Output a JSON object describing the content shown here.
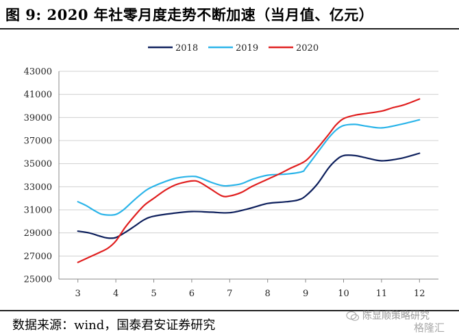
{
  "header": {
    "title": "图 9: 2020 年社零月度走势不断加速（当月值、亿元）"
  },
  "footer": {
    "source": "数据来源：wind，国泰君安证券研究",
    "watermark_account": "陈显顺策略研究",
    "watermark_brand": "格隆汇"
  },
  "chart_data": {
    "type": "line",
    "title": "",
    "xlabel": "",
    "ylabel": "",
    "categories": [
      "3",
      "4",
      "5",
      "6",
      "7",
      "8",
      "9",
      "10",
      "11",
      "12"
    ],
    "x": [
      3,
      4,
      5,
      6,
      7,
      8,
      9,
      10,
      11,
      12
    ],
    "ylim": [
      25000,
      43000
    ],
    "yticks": [
      "25000",
      "27000",
      "29000",
      "31000",
      "33000",
      "35000",
      "37000",
      "39000",
      "41000",
      "43000"
    ],
    "grid": "horizontal",
    "legend_position": "top-center",
    "series": [
      {
        "name": "2018",
        "color": "#0d1f5c",
        "points": [
          [
            3.0,
            29150
          ],
          [
            3.3,
            29000
          ],
          [
            3.6,
            28700
          ],
          [
            3.8,
            28550
          ],
          [
            4.0,
            28600
          ],
          [
            4.25,
            29050
          ],
          [
            4.5,
            29600
          ],
          [
            4.75,
            30150
          ],
          [
            5.0,
            30450
          ],
          [
            5.5,
            30700
          ],
          [
            6.0,
            30850
          ],
          [
            6.5,
            30800
          ],
          [
            7.0,
            30750
          ],
          [
            7.5,
            31100
          ],
          [
            8.0,
            31550
          ],
          [
            8.5,
            31700
          ],
          [
            8.8,
            31850
          ],
          [
            9.0,
            32200
          ],
          [
            9.3,
            33200
          ],
          [
            9.6,
            34600
          ],
          [
            9.8,
            35300
          ],
          [
            10.0,
            35700
          ],
          [
            10.3,
            35700
          ],
          [
            10.6,
            35500
          ],
          [
            11.0,
            35250
          ],
          [
            11.5,
            35450
          ],
          [
            12.0,
            35900
          ]
        ]
      },
      {
        "name": "2019",
        "color": "#2ab4e9",
        "points": [
          [
            3.0,
            31700
          ],
          [
            3.2,
            31400
          ],
          [
            3.4,
            31000
          ],
          [
            3.6,
            30650
          ],
          [
            3.8,
            30550
          ],
          [
            4.0,
            30600
          ],
          [
            4.2,
            31000
          ],
          [
            4.5,
            31900
          ],
          [
            4.8,
            32700
          ],
          [
            5.0,
            33050
          ],
          [
            5.3,
            33450
          ],
          [
            5.6,
            33750
          ],
          [
            6.0,
            33900
          ],
          [
            6.2,
            33800
          ],
          [
            6.5,
            33400
          ],
          [
            6.8,
            33100
          ],
          [
            7.0,
            33100
          ],
          [
            7.3,
            33250
          ],
          [
            7.6,
            33650
          ],
          [
            8.0,
            34000
          ],
          [
            8.5,
            34100
          ],
          [
            8.9,
            34300
          ],
          [
            9.0,
            34600
          ],
          [
            9.3,
            35900
          ],
          [
            9.6,
            37200
          ],
          [
            9.8,
            37900
          ],
          [
            10.0,
            38300
          ],
          [
            10.3,
            38400
          ],
          [
            10.6,
            38250
          ],
          [
            11.0,
            38100
          ],
          [
            11.5,
            38400
          ],
          [
            12.0,
            38800
          ]
        ]
      },
      {
        "name": "2020",
        "color": "#e01e1e",
        "points": [
          [
            3.0,
            26450
          ],
          [
            3.3,
            26900
          ],
          [
            3.6,
            27350
          ],
          [
            3.8,
            27700
          ],
          [
            4.0,
            28300
          ],
          [
            4.25,
            29500
          ],
          [
            4.5,
            30500
          ],
          [
            4.75,
            31400
          ],
          [
            5.0,
            32000
          ],
          [
            5.3,
            32700
          ],
          [
            5.6,
            33200
          ],
          [
            6.0,
            33500
          ],
          [
            6.2,
            33400
          ],
          [
            6.5,
            32800
          ],
          [
            6.8,
            32200
          ],
          [
            7.0,
            32200
          ],
          [
            7.3,
            32500
          ],
          [
            7.6,
            33050
          ],
          [
            8.0,
            33650
          ],
          [
            8.3,
            34100
          ],
          [
            8.6,
            34600
          ],
          [
            9.0,
            35250
          ],
          [
            9.3,
            36300
          ],
          [
            9.6,
            37500
          ],
          [
            9.8,
            38350
          ],
          [
            10.0,
            38900
          ],
          [
            10.3,
            39200
          ],
          [
            10.6,
            39350
          ],
          [
            11.0,
            39550
          ],
          [
            11.3,
            39850
          ],
          [
            11.6,
            40100
          ],
          [
            12.0,
            40600
          ]
        ]
      }
    ]
  }
}
